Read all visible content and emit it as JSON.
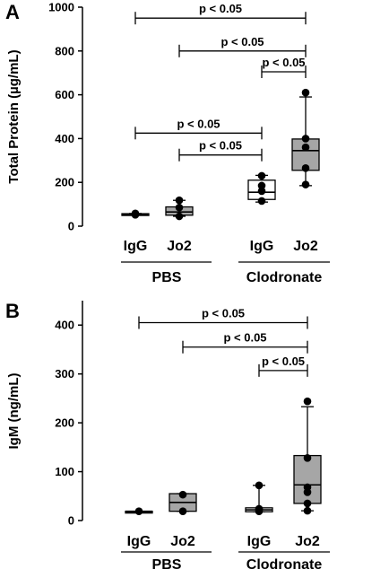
{
  "chart_data": [
    {
      "type": "box",
      "panel": "A",
      "ylabel": "Total Protein (µg/mL)",
      "ylim": [
        0,
        1000
      ],
      "yticks": [
        0,
        200,
        400,
        600,
        800,
        1000
      ],
      "groups": [
        {
          "label": "PBS",
          "categories": [
            "IgG",
            "Jo2"
          ]
        },
        {
          "label": "Clodronate",
          "categories": [
            "IgG",
            "Jo2"
          ]
        }
      ],
      "boxes": [
        {
          "group": "PBS",
          "category": "IgG",
          "fill": "#000000",
          "min": 52,
          "q1": 53,
          "median": 55,
          "q3": 57,
          "max": 58,
          "points": [
            52,
            55,
            58
          ]
        },
        {
          "group": "PBS",
          "category": "Jo2",
          "fill": "#a6a6a6",
          "min": 45,
          "q1": 50,
          "median": 65,
          "q3": 88,
          "max": 118,
          "points": [
            45,
            85,
            118
          ]
        },
        {
          "group": "Clodronate",
          "category": "IgG",
          "fill": "#ffffff",
          "min": 110,
          "q1": 122,
          "median": 155,
          "q3": 210,
          "max": 232,
          "points": [
            115,
            160,
            185,
            230
          ]
        },
        {
          "group": "Clodronate",
          "category": "Jo2",
          "fill": "#a6a6a6",
          "min": 185,
          "q1": 255,
          "median": 345,
          "q3": 398,
          "max": 590,
          "points": [
            190,
            265,
            360,
            400,
            610
          ]
        }
      ],
      "comparisons": [
        {
          "from": 0,
          "to": 3,
          "label": "p < 0.05",
          "y": 950
        },
        {
          "from": 1,
          "to": 3,
          "label": "p < 0.05",
          "y": 800
        },
        {
          "from": 2,
          "to": 3,
          "label": "p < 0.05",
          "y": 705
        },
        {
          "from": 0,
          "to": 2,
          "label": "p < 0.05",
          "y": 425
        },
        {
          "from": 1,
          "to": 2,
          "label": "p < 0.05",
          "y": 325
        }
      ]
    },
    {
      "type": "box",
      "panel": "B",
      "ylabel": "IgM (ng/mL)",
      "ylim": [
        0,
        450
      ],
      "yticks": [
        0,
        100,
        200,
        300,
        400
      ],
      "groups": [
        {
          "label": "PBS",
          "categories": [
            "IgG",
            "Jo2"
          ]
        },
        {
          "label": "Clodronate",
          "categories": [
            "IgG",
            "Jo2"
          ]
        }
      ],
      "boxes": [
        {
          "group": "PBS",
          "category": "IgG",
          "fill": "#000000",
          "min": 19,
          "q1": 19,
          "median": 19,
          "q3": 19,
          "max": 19,
          "points": [
            19
          ]
        },
        {
          "group": "PBS",
          "category": "Jo2",
          "fill": "#a6a6a6",
          "min": 19,
          "q1": 19,
          "median": 37,
          "q3": 55,
          "max": 55,
          "points": [
            19,
            53
          ]
        },
        {
          "group": "Clodronate",
          "category": "IgG",
          "fill": "#ffffff",
          "min": 18,
          "q1": 18,
          "median": 22,
          "q3": 26,
          "max": 72,
          "points": [
            19,
            22,
            24,
            72
          ]
        },
        {
          "group": "Clodronate",
          "category": "Jo2",
          "fill": "#a6a6a6",
          "min": 20,
          "q1": 35,
          "median": 73,
          "q3": 133,
          "max": 233,
          "points": [
            20,
            35,
            58,
            68,
            128,
            244
          ]
        }
      ],
      "comparisons": [
        {
          "from": 0,
          "to": 3,
          "label": "p < 0.05",
          "y": 405
        },
        {
          "from": 1,
          "to": 3,
          "label": "p < 0.05",
          "y": 355
        },
        {
          "from": 2,
          "to": 3,
          "label": "p < 0.05",
          "y": 307
        }
      ]
    }
  ]
}
